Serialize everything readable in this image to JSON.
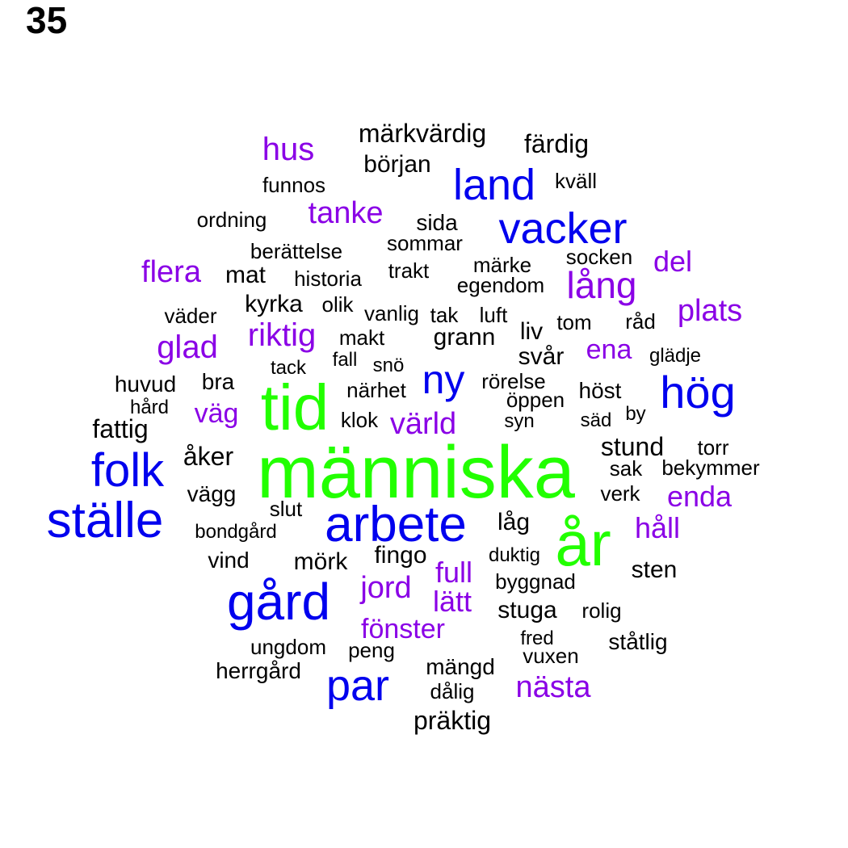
{
  "title": "35",
  "colors": {
    "green": "#22ff00",
    "blue": "#0000ee",
    "purple": "#8a00e6",
    "black": "#000000"
  },
  "words": [
    {
      "text": "människa",
      "color": "green"
    },
    {
      "text": "tid",
      "color": "green"
    },
    {
      "text": "år",
      "color": "green"
    },
    {
      "text": "ställe",
      "color": "blue"
    },
    {
      "text": "arbete",
      "color": "blue"
    },
    {
      "text": "gård",
      "color": "blue"
    },
    {
      "text": "folk",
      "color": "blue"
    },
    {
      "text": "vacker",
      "color": "blue"
    },
    {
      "text": "land",
      "color": "blue"
    },
    {
      "text": "hög",
      "color": "blue"
    },
    {
      "text": "par",
      "color": "blue"
    },
    {
      "text": "ny",
      "color": "blue"
    },
    {
      "text": "lång",
      "color": "purple"
    },
    {
      "text": "hus",
      "color": "purple"
    },
    {
      "text": "tanke",
      "color": "purple"
    },
    {
      "text": "flera",
      "color": "purple"
    },
    {
      "text": "del",
      "color": "purple"
    },
    {
      "text": "plats",
      "color": "purple"
    },
    {
      "text": "glad",
      "color": "purple"
    },
    {
      "text": "riktig",
      "color": "purple"
    },
    {
      "text": "ena",
      "color": "purple"
    },
    {
      "text": "väg",
      "color": "purple"
    },
    {
      "text": "värld",
      "color": "purple"
    },
    {
      "text": "enda",
      "color": "purple"
    },
    {
      "text": "håll",
      "color": "purple"
    },
    {
      "text": "jord",
      "color": "purple"
    },
    {
      "text": "full",
      "color": "purple"
    },
    {
      "text": "lätt",
      "color": "purple"
    },
    {
      "text": "fönster",
      "color": "purple"
    },
    {
      "text": "nästa",
      "color": "purple"
    },
    {
      "text": "märkvärdig",
      "color": "black"
    },
    {
      "text": "färdig",
      "color": "black"
    },
    {
      "text": "början",
      "color": "black"
    },
    {
      "text": "kväll",
      "color": "black"
    },
    {
      "text": "funnos",
      "color": "black"
    },
    {
      "text": "ordning",
      "color": "black"
    },
    {
      "text": "sida",
      "color": "black"
    },
    {
      "text": "sommar",
      "color": "black"
    },
    {
      "text": "berättelse",
      "color": "black"
    },
    {
      "text": "socken",
      "color": "black"
    },
    {
      "text": "mat",
      "color": "black"
    },
    {
      "text": "trakt",
      "color": "black"
    },
    {
      "text": "märke",
      "color": "black"
    },
    {
      "text": "historia",
      "color": "black"
    },
    {
      "text": "egendom",
      "color": "black"
    },
    {
      "text": "kyrka",
      "color": "black"
    },
    {
      "text": "olik",
      "color": "black"
    },
    {
      "text": "vanlig",
      "color": "black"
    },
    {
      "text": "tak",
      "color": "black"
    },
    {
      "text": "luft",
      "color": "black"
    },
    {
      "text": "väder",
      "color": "black"
    },
    {
      "text": "tom",
      "color": "black"
    },
    {
      "text": "råd",
      "color": "black"
    },
    {
      "text": "makt",
      "color": "black"
    },
    {
      "text": "grann",
      "color": "black"
    },
    {
      "text": "liv",
      "color": "black"
    },
    {
      "text": "svår",
      "color": "black"
    },
    {
      "text": "glädje",
      "color": "black"
    },
    {
      "text": "tack",
      "color": "black"
    },
    {
      "text": "fall",
      "color": "black"
    },
    {
      "text": "snö",
      "color": "black"
    },
    {
      "text": "huvud",
      "color": "black"
    },
    {
      "text": "bra",
      "color": "black"
    },
    {
      "text": "rörelse",
      "color": "black"
    },
    {
      "text": "närhet",
      "color": "black"
    },
    {
      "text": "höst",
      "color": "black"
    },
    {
      "text": "hård",
      "color": "black"
    },
    {
      "text": "öppen",
      "color": "black"
    },
    {
      "text": "fattig",
      "color": "black"
    },
    {
      "text": "klok",
      "color": "black"
    },
    {
      "text": "syn",
      "color": "black"
    },
    {
      "text": "säd",
      "color": "black"
    },
    {
      "text": "by",
      "color": "black"
    },
    {
      "text": "stund",
      "color": "black"
    },
    {
      "text": "torr",
      "color": "black"
    },
    {
      "text": "åker",
      "color": "black"
    },
    {
      "text": "sak",
      "color": "black"
    },
    {
      "text": "bekymmer",
      "color": "black"
    },
    {
      "text": "vägg",
      "color": "black"
    },
    {
      "text": "verk",
      "color": "black"
    },
    {
      "text": "slut",
      "color": "black"
    },
    {
      "text": "låg",
      "color": "black"
    },
    {
      "text": "bondgård",
      "color": "black"
    },
    {
      "text": "fingo",
      "color": "black"
    },
    {
      "text": "duktig",
      "color": "black"
    },
    {
      "text": "vind",
      "color": "black"
    },
    {
      "text": "mörk",
      "color": "black"
    },
    {
      "text": "sten",
      "color": "black"
    },
    {
      "text": "byggnad",
      "color": "black"
    },
    {
      "text": "stuga",
      "color": "black"
    },
    {
      "text": "rolig",
      "color": "black"
    },
    {
      "text": "ungdom",
      "color": "black"
    },
    {
      "text": "fred",
      "color": "black"
    },
    {
      "text": "ståtlig",
      "color": "black"
    },
    {
      "text": "peng",
      "color": "black"
    },
    {
      "text": "vuxen",
      "color": "black"
    },
    {
      "text": "herrgård",
      "color": "black"
    },
    {
      "text": "mängd",
      "color": "black"
    },
    {
      "text": "dålig",
      "color": "black"
    },
    {
      "text": "präktig",
      "color": "black"
    }
  ]
}
